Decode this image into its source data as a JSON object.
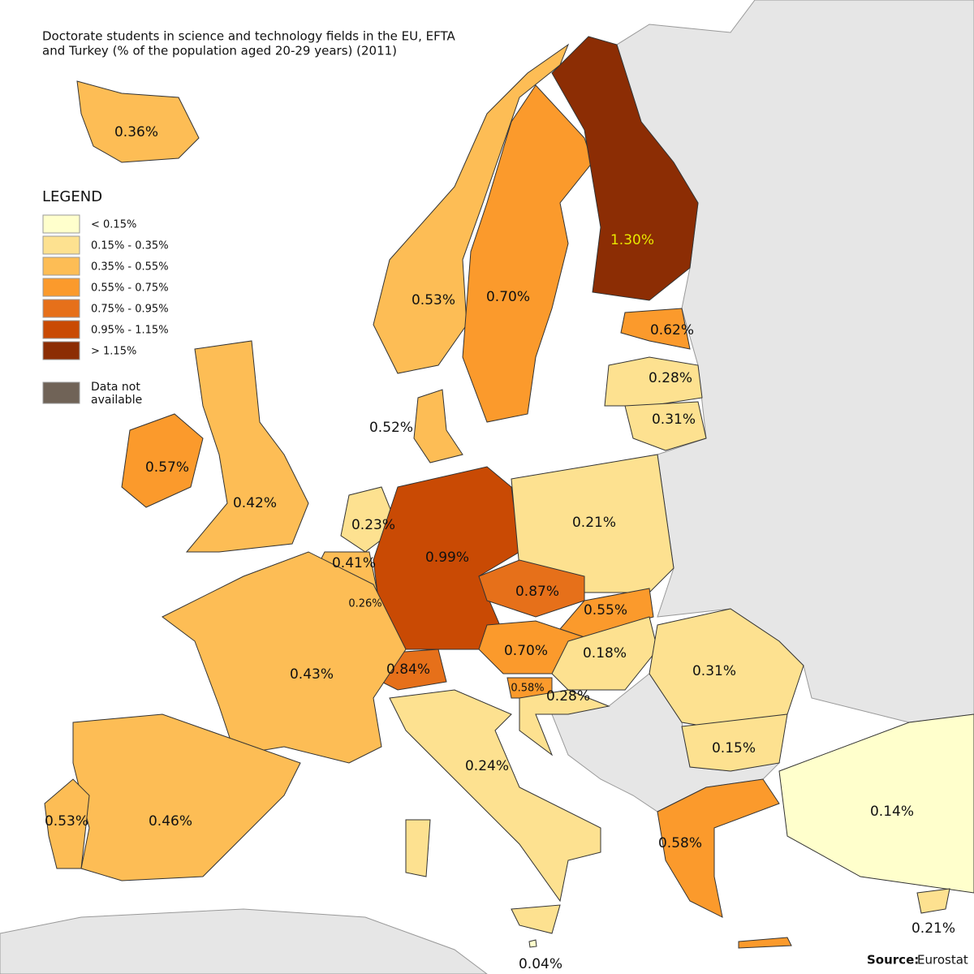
{
  "title": "Doctorate students in science and technology fields in the EU, EFTA and Turkey (% of the population aged 20-29 years) (2011)",
  "legend": {
    "title": "LEGEND",
    "items": [
      {
        "label": "< 0.15%",
        "color": "#ffffcc"
      },
      {
        "label": "0.15% - 0.35%",
        "color": "#fde190"
      },
      {
        "label": "0.35% - 0.55%",
        "color": "#fdbd55"
      },
      {
        "label": "0.55% - 0.75%",
        "color": "#fb9a2c"
      },
      {
        "label": "0.75% - 0.95%",
        "color": "#e6701a"
      },
      {
        "label": "0.95% - 1.15%",
        "color": "#c94a04"
      },
      {
        "label": "> 1.15%",
        "color": "#8c2d04"
      }
    ],
    "breaks": [
      0.15,
      0.35,
      0.55,
      0.75,
      0.95,
      1.15
    ],
    "no_data": {
      "label": "Data not available",
      "color": "#706357"
    }
  },
  "regions": [
    {
      "value": 0.36,
      "label": "0.36%"
    },
    {
      "value": 0.53,
      "label": "0.53%"
    },
    {
      "value": 0.7,
      "label": "0.70%"
    },
    {
      "value": 1.3,
      "label": "1.30%"
    },
    {
      "value": 0.62,
      "label": "0.62%"
    },
    {
      "value": 0.28,
      "label": "0.28%"
    },
    {
      "value": 0.31,
      "label": "0.31%"
    },
    {
      "value": 0.52,
      "label": "0.52%"
    },
    {
      "value": 0.57,
      "label": "0.57%"
    },
    {
      "value": 0.42,
      "label": "0.42%"
    },
    {
      "value": 0.23,
      "label": "0.23%"
    },
    {
      "value": 0.41,
      "label": "0.41%"
    },
    {
      "value": 0.26,
      "label": "0.26%"
    },
    {
      "value": 0.99,
      "label": "0.99%"
    },
    {
      "value": 0.21,
      "label": "0.21%"
    },
    {
      "value": 0.87,
      "label": "0.87%"
    },
    {
      "value": 0.55,
      "label": "0.55%"
    },
    {
      "value": 0.7,
      "label": "0.70%"
    },
    {
      "value": 0.18,
      "label": "0.18%"
    },
    {
      "value": 0.84,
      "label": "0.84%"
    },
    {
      "value": 0.58,
      "label": "0.58%"
    },
    {
      "value": 0.28,
      "label": "0.28%"
    },
    {
      "value": 0.31,
      "label": "0.31%"
    },
    {
      "value": 0.15,
      "label": "0.15%"
    },
    {
      "value": 0.43,
      "label": "0.43%"
    },
    {
      "value": 0.24,
      "label": "0.24%"
    },
    {
      "value": 0.46,
      "label": "0.46%"
    },
    {
      "value": 0.53,
      "label": "0.53%"
    },
    {
      "value": 0.58,
      "label": "0.58%"
    },
    {
      "value": 0.14,
      "label": "0.14%"
    },
    {
      "value": 0.21,
      "label": "0.21%"
    },
    {
      "value": 0.04,
      "label": "0.04%"
    }
  ],
  "source": {
    "label": "Source:",
    "text": "Eurostat"
  }
}
